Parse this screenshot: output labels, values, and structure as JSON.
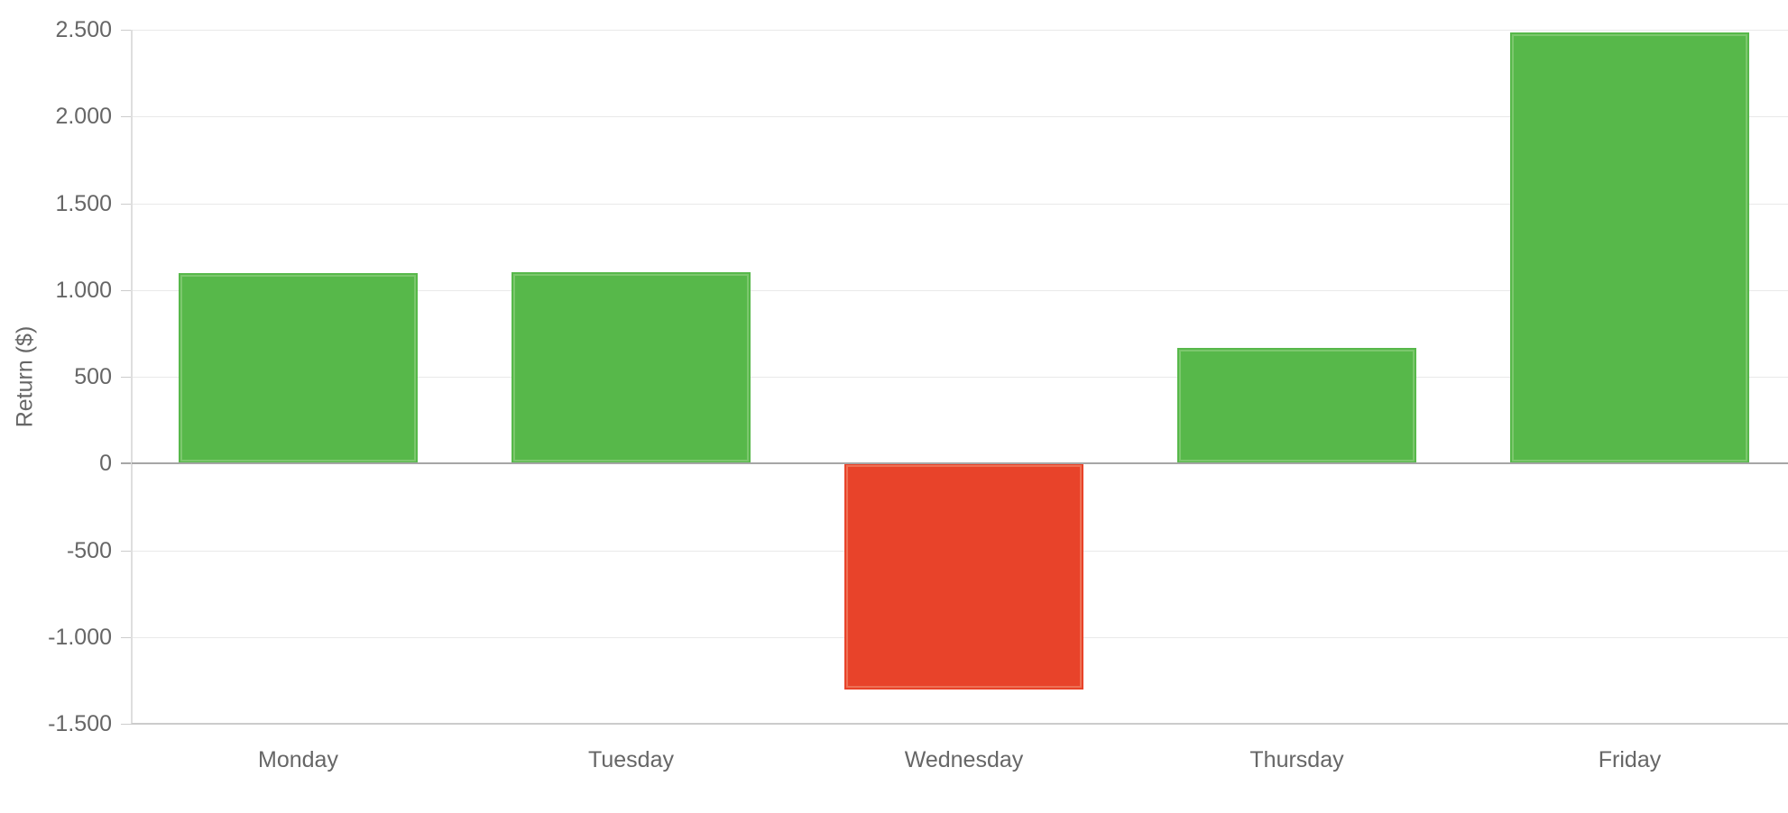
{
  "chart_data": {
    "type": "bar",
    "title": "",
    "xlabel": "",
    "ylabel": "Return ($)",
    "categories": [
      "Monday",
      "Tuesday",
      "Wednesday",
      "Thursday",
      "Friday"
    ],
    "values": [
      1100,
      1105,
      -1300,
      665,
      2485
    ],
    "ylim": [
      -1500,
      2500
    ],
    "ytick_step": 500,
    "yticks": [
      {
        "value": 2500,
        "label": "2.500"
      },
      {
        "value": 2000,
        "label": "2.000"
      },
      {
        "value": 1500,
        "label": "1.500"
      },
      {
        "value": 1000,
        "label": "1.000"
      },
      {
        "value": 500,
        "label": "500"
      },
      {
        "value": 0,
        "label": "0"
      },
      {
        "value": -500,
        "label": "-500"
      },
      {
        "value": -1000,
        "label": "-1.000"
      },
      {
        "value": -1500,
        "label": "-1.500"
      }
    ],
    "grid": true,
    "legend": "none",
    "colors": {
      "positive_fill": "#57b84a",
      "positive_edge": "#7cc76d",
      "negative_fill": "#e8432a",
      "negative_edge": "#ee7055",
      "grid_line": "#e9e9e9",
      "axis_line": "#dedede",
      "tick_line": "#cccccc",
      "zero_line": "#a6a6a6",
      "bottom_line": "#cccccc",
      "label_text": "#666666"
    }
  }
}
